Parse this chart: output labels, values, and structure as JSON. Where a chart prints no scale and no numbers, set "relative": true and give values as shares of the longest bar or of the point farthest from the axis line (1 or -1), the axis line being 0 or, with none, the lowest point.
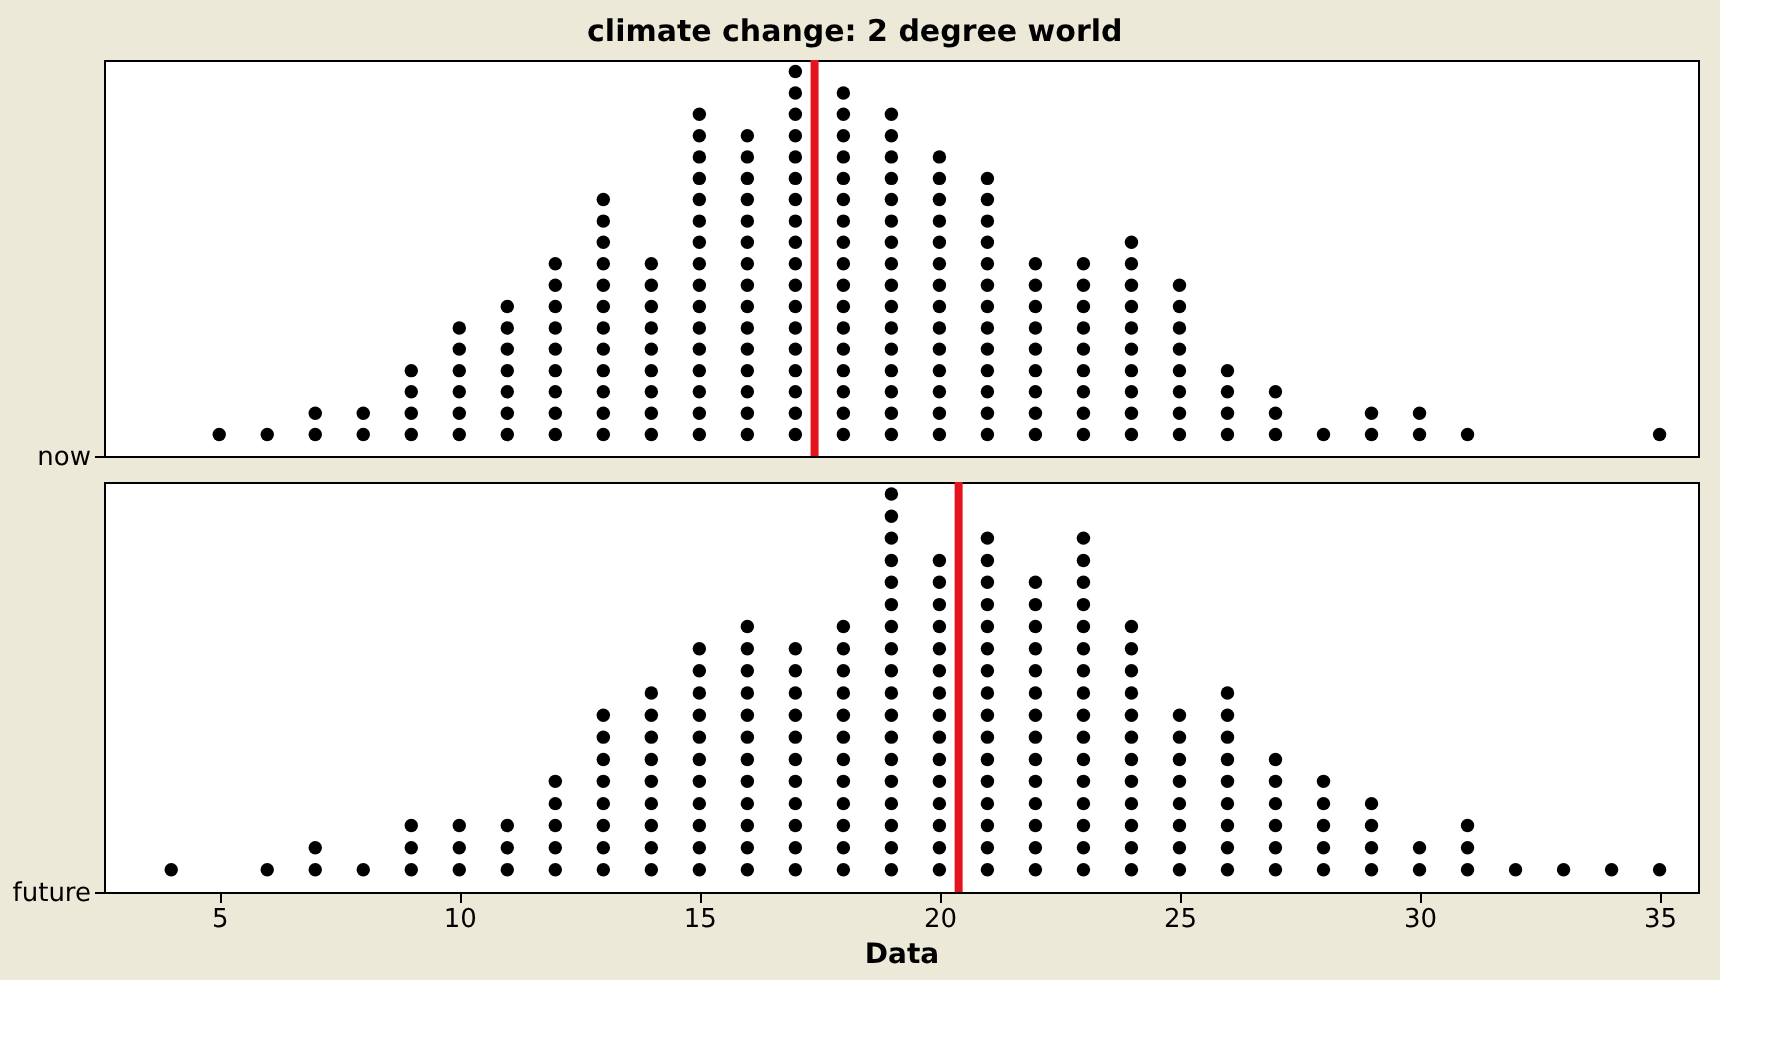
{
  "chart_data": [
    {
      "type": "scatter",
      "relative": true,
      "title": "climate change: 2 degree world",
      "ylabel": "now",
      "color": "#000000",
      "marker": "circle",
      "tick_labels": "y",
      "xlim": [
        2.6,
        35.8
      ],
      "x": [
        5,
        6,
        7,
        7,
        8,
        8,
        9,
        9,
        9,
        9,
        10,
        10,
        10,
        10,
        10,
        10,
        11,
        11,
        11,
        11,
        11,
        11,
        11,
        12,
        12,
        12,
        12,
        12,
        12,
        12,
        12,
        12,
        13,
        13,
        13,
        13,
        13,
        13,
        13,
        13,
        13,
        13,
        13,
        13,
        14,
        14,
        14,
        14,
        14,
        14,
        14,
        14,
        14,
        15,
        15,
        15,
        15,
        15,
        15,
        15,
        15,
        15,
        15,
        15,
        15,
        15,
        15,
        15,
        15,
        16,
        16,
        16,
        16,
        16,
        16,
        16,
        16,
        16,
        16,
        16,
        16,
        16,
        16,
        16,
        17,
        17,
        17,
        17,
        17,
        17,
        17,
        17,
        17,
        17,
        17,
        17,
        17,
        17,
        17,
        17,
        17,
        17,
        18,
        18,
        18,
        18,
        18,
        18,
        18,
        18,
        18,
        18,
        18,
        18,
        18,
        18,
        18,
        18,
        18,
        19,
        19,
        19,
        19,
        19,
        19,
        19,
        19,
        19,
        19,
        19,
        19,
        19,
        19,
        19,
        19,
        20,
        20,
        20,
        20,
        20,
        20,
        20,
        20,
        20,
        20,
        20,
        20,
        20,
        20,
        21,
        21,
        21,
        21,
        21,
        21,
        21,
        21,
        21,
        21,
        21,
        21,
        21,
        22,
        22,
        22,
        22,
        22,
        22,
        22,
        22,
        22,
        23,
        23,
        23,
        23,
        23,
        23,
        23,
        23,
        23,
        24,
        24,
        24,
        24,
        24,
        24,
        24,
        24,
        24,
        24,
        25,
        25,
        25,
        25,
        25,
        25,
        25,
        25,
        26,
        26,
        26,
        26,
        27,
        27,
        27,
        28,
        29,
        29,
        30,
        30,
        31,
        35
      ],
      "values": [
        0.056,
        0.056,
        0.056,
        0.111,
        0.056,
        0.111,
        0.056,
        0.111,
        0.167,
        0.222,
        0.056,
        0.111,
        0.167,
        0.222,
        0.278,
        0.333,
        0.056,
        0.111,
        0.167,
        0.222,
        0.278,
        0.333,
        0.389,
        0.056,
        0.111,
        0.167,
        0.222,
        0.278,
        0.333,
        0.389,
        0.444,
        0.5,
        0.056,
        0.111,
        0.167,
        0.222,
        0.278,
        0.333,
        0.389,
        0.444,
        0.5,
        0.556,
        0.611,
        0.667,
        0.056,
        0.111,
        0.167,
        0.222,
        0.278,
        0.333,
        0.389,
        0.444,
        0.5,
        0.056,
        0.111,
        0.167,
        0.222,
        0.278,
        0.333,
        0.389,
        0.444,
        0.5,
        0.556,
        0.611,
        0.667,
        0.722,
        0.778,
        0.833,
        0.889,
        0.056,
        0.111,
        0.167,
        0.222,
        0.278,
        0.333,
        0.389,
        0.444,
        0.5,
        0.556,
        0.611,
        0.667,
        0.722,
        0.778,
        0.833,
        0.056,
        0.111,
        0.167,
        0.222,
        0.278,
        0.333,
        0.389,
        0.444,
        0.5,
        0.556,
        0.611,
        0.667,
        0.722,
        0.778,
        0.833,
        0.889,
        0.944,
        1,
        0.056,
        0.111,
        0.167,
        0.222,
        0.278,
        0.333,
        0.389,
        0.444,
        0.5,
        0.556,
        0.611,
        0.667,
        0.722,
        0.778,
        0.833,
        0.889,
        0.944,
        0.056,
        0.111,
        0.167,
        0.222,
        0.278,
        0.333,
        0.389,
        0.444,
        0.5,
        0.556,
        0.611,
        0.667,
        0.722,
        0.778,
        0.833,
        0.889,
        0.056,
        0.111,
        0.167,
        0.222,
        0.278,
        0.333,
        0.389,
        0.444,
        0.5,
        0.556,
        0.611,
        0.667,
        0.722,
        0.778,
        0.056,
        0.111,
        0.167,
        0.222,
        0.278,
        0.333,
        0.389,
        0.444,
        0.5,
        0.556,
        0.611,
        0.667,
        0.722,
        0.056,
        0.111,
        0.167,
        0.222,
        0.278,
        0.333,
        0.389,
        0.444,
        0.5,
        0.056,
        0.111,
        0.167,
        0.222,
        0.278,
        0.333,
        0.389,
        0.444,
        0.5,
        0.056,
        0.111,
        0.167,
        0.222,
        0.278,
        0.333,
        0.389,
        0.444,
        0.5,
        0.556,
        0.056,
        0.111,
        0.167,
        0.222,
        0.278,
        0.333,
        0.389,
        0.444,
        0.056,
        0.111,
        0.167,
        0.222,
        0.056,
        0.111,
        0.167,
        0.056,
        0.056,
        0.111,
        0.056,
        0.111,
        0.056,
        0.056
      ],
      "ref_lines": [
        {
          "axis": "x",
          "value": 17.4,
          "color": "#e3141c"
        }
      ]
    },
    {
      "type": "scatter",
      "relative": true,
      "ylabel": "future",
      "xlabel": "Data",
      "color": "#000000",
      "marker": "circle",
      "xlim": [
        2.6,
        35.8
      ],
      "xticks": [
        5,
        10,
        15,
        20,
        25,
        30,
        35
      ],
      "x": [
        4,
        6,
        7,
        7,
        8,
        9,
        9,
        9,
        10,
        10,
        10,
        11,
        11,
        11,
        12,
        12,
        12,
        12,
        12,
        13,
        13,
        13,
        13,
        13,
        13,
        13,
        13,
        14,
        14,
        14,
        14,
        14,
        14,
        14,
        14,
        14,
        15,
        15,
        15,
        15,
        15,
        15,
        15,
        15,
        15,
        15,
        15,
        16,
        16,
        16,
        16,
        16,
        16,
        16,
        16,
        16,
        16,
        16,
        16,
        17,
        17,
        17,
        17,
        17,
        17,
        17,
        17,
        17,
        17,
        17,
        18,
        18,
        18,
        18,
        18,
        18,
        18,
        18,
        18,
        18,
        18,
        18,
        19,
        19,
        19,
        19,
        19,
        19,
        19,
        19,
        19,
        19,
        19,
        19,
        19,
        19,
        19,
        19,
        19,
        19,
        20,
        20,
        20,
        20,
        20,
        20,
        20,
        20,
        20,
        20,
        20,
        20,
        20,
        20,
        20,
        21,
        21,
        21,
        21,
        21,
        21,
        21,
        21,
        21,
        21,
        21,
        21,
        21,
        21,
        21,
        21,
        22,
        22,
        22,
        22,
        22,
        22,
        22,
        22,
        22,
        22,
        22,
        22,
        22,
        22,
        23,
        23,
        23,
        23,
        23,
        23,
        23,
        23,
        23,
        23,
        23,
        23,
        23,
        23,
        23,
        23,
        24,
        24,
        24,
        24,
        24,
        24,
        24,
        24,
        24,
        24,
        24,
        24,
        25,
        25,
        25,
        25,
        25,
        25,
        25,
        25,
        26,
        26,
        26,
        26,
        26,
        26,
        26,
        26,
        26,
        27,
        27,
        27,
        27,
        27,
        27,
        28,
        28,
        28,
        28,
        28,
        29,
        29,
        29,
        29,
        30,
        30,
        31,
        31,
        31,
        32,
        33,
        34,
        35
      ],
      "values": [
        0.056,
        0.056,
        0.056,
        0.111,
        0.056,
        0.056,
        0.111,
        0.167,
        0.056,
        0.111,
        0.167,
        0.056,
        0.111,
        0.167,
        0.056,
        0.111,
        0.167,
        0.222,
        0.278,
        0.056,
        0.111,
        0.167,
        0.222,
        0.278,
        0.333,
        0.389,
        0.444,
        0.056,
        0.111,
        0.167,
        0.222,
        0.278,
        0.333,
        0.389,
        0.444,
        0.5,
        0.056,
        0.111,
        0.167,
        0.222,
        0.278,
        0.333,
        0.389,
        0.444,
        0.5,
        0.556,
        0.611,
        0.056,
        0.111,
        0.167,
        0.222,
        0.278,
        0.333,
        0.389,
        0.444,
        0.5,
        0.556,
        0.611,
        0.667,
        0.056,
        0.111,
        0.167,
        0.222,
        0.278,
        0.333,
        0.389,
        0.444,
        0.5,
        0.556,
        0.611,
        0.056,
        0.111,
        0.167,
        0.222,
        0.278,
        0.333,
        0.389,
        0.444,
        0.5,
        0.556,
        0.611,
        0.667,
        0.056,
        0.111,
        0.167,
        0.222,
        0.278,
        0.333,
        0.389,
        0.444,
        0.5,
        0.556,
        0.611,
        0.667,
        0.722,
        0.778,
        0.833,
        0.889,
        0.944,
        1,
        0.056,
        0.111,
        0.167,
        0.222,
        0.278,
        0.333,
        0.389,
        0.444,
        0.5,
        0.556,
        0.611,
        0.667,
        0.722,
        0.778,
        0.833,
        0.056,
        0.111,
        0.167,
        0.222,
        0.278,
        0.333,
        0.389,
        0.444,
        0.5,
        0.556,
        0.611,
        0.667,
        0.722,
        0.778,
        0.833,
        0.889,
        0.056,
        0.111,
        0.167,
        0.222,
        0.278,
        0.333,
        0.389,
        0.444,
        0.5,
        0.556,
        0.611,
        0.667,
        0.722,
        0.778,
        0.056,
        0.111,
        0.167,
        0.222,
        0.278,
        0.333,
        0.389,
        0.444,
        0.5,
        0.556,
        0.611,
        0.667,
        0.722,
        0.778,
        0.833,
        0.889,
        0.056,
        0.111,
        0.167,
        0.222,
        0.278,
        0.333,
        0.389,
        0.444,
        0.5,
        0.556,
        0.611,
        0.667,
        0.056,
        0.111,
        0.167,
        0.222,
        0.278,
        0.333,
        0.389,
        0.444,
        0.056,
        0.111,
        0.167,
        0.222,
        0.278,
        0.333,
        0.389,
        0.444,
        0.5,
        0.056,
        0.111,
        0.167,
        0.222,
        0.278,
        0.333,
        0.056,
        0.111,
        0.167,
        0.222,
        0.278,
        0.056,
        0.111,
        0.167,
        0.222,
        0.056,
        0.111,
        0.056,
        0.111,
        0.167,
        0.056,
        0.056,
        0.056,
        0.056
      ],
      "ref_lines": [
        {
          "axis": "x",
          "value": 20.4,
          "color": "#e3141c"
        }
      ]
    }
  ]
}
